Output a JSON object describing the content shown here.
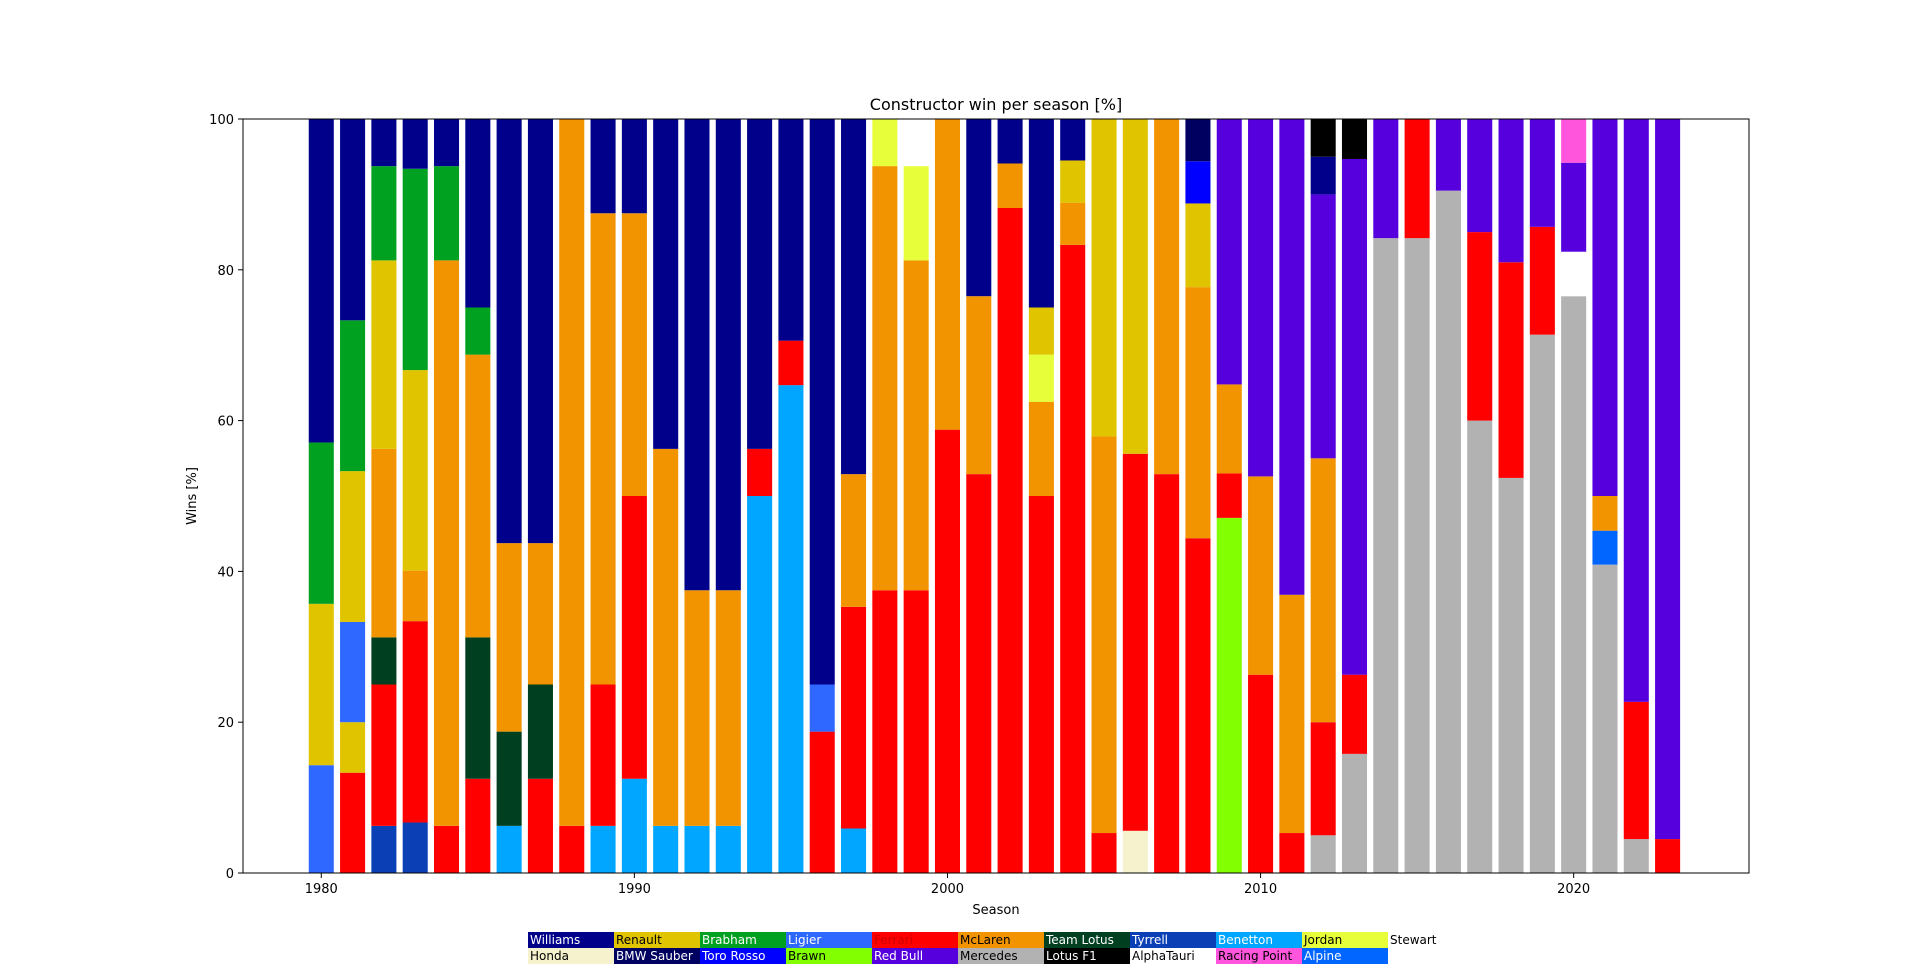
{
  "chart_data": {
    "type": "bar",
    "stacked": true,
    "title": "Constructor win per season [%]",
    "xlabel": "Season",
    "ylabel": "Wins [%]",
    "xlim": [
      1977.5,
      2025.6
    ],
    "ylim": [
      0,
      100
    ],
    "xticks": [
      1980,
      1990,
      2000,
      2010,
      2020
    ],
    "yticks": [
      0,
      20,
      40,
      60,
      80,
      100
    ],
    "grid": false,
    "legend_position": "bottom-center",
    "constructors": [
      {
        "name": "Williams",
        "color": "#00008b",
        "text_color": "#ffffff"
      },
      {
        "name": "Renault",
        "color": "#e0c400",
        "text_color": "#000000"
      },
      {
        "name": "Brabham",
        "color": "#00a020",
        "text_color": "#ffffff"
      },
      {
        "name": "Ligier",
        "color": "#2e68ff",
        "text_color": "#ffffff"
      },
      {
        "name": "Ferrari",
        "color": "#ff0000",
        "text_color": "#cc0000"
      },
      {
        "name": "McLaren",
        "color": "#f29400",
        "text_color": "#000000"
      },
      {
        "name": "Team Lotus",
        "color": "#004020",
        "text_color": "#ffffff"
      },
      {
        "name": "Tyrrell",
        "color": "#0b3fb6",
        "text_color": "#ffffff"
      },
      {
        "name": "Benetton",
        "color": "#00a6ff",
        "text_color": "#ffffff"
      },
      {
        "name": "Jordan",
        "color": "#e6ff3a",
        "text_color": "#000000"
      },
      {
        "name": "Stewart",
        "color": "#ffffff",
        "text_color": "#000000"
      },
      {
        "name": "Honda",
        "color": "#f5f2cd",
        "text_color": "#000000"
      },
      {
        "name": "BMW Sauber",
        "color": "#000060",
        "text_color": "#ffffff"
      },
      {
        "name": "Toro Rosso",
        "color": "#0000ff",
        "text_color": "#ffffff"
      },
      {
        "name": "Brawn",
        "color": "#82ff00",
        "text_color": "#000000"
      },
      {
        "name": "Red Bull",
        "color": "#5500dd",
        "text_color": "#ffffff"
      },
      {
        "name": "Mercedes",
        "color": "#b2b2b2",
        "text_color": "#000000"
      },
      {
        "name": "Lotus F1",
        "color": "#000000",
        "text_color": "#ffffff"
      },
      {
        "name": "AlphaTauri",
        "color": "#ffffff",
        "text_color": "#000000"
      },
      {
        "name": "Racing Point",
        "color": "#ff55dd",
        "text_color": "#000000"
      },
      {
        "name": "Alpine",
        "color": "#0066ff",
        "text_color": "#ffffff"
      }
    ],
    "seasons": [
      {
        "year": 1980,
        "segments": [
          [
            "Ligier",
            14.3
          ],
          [
            "Renault",
            21.4
          ],
          [
            "Brabham",
            21.4
          ],
          [
            "Williams",
            42.9
          ]
        ]
      },
      {
        "year": 1981,
        "segments": [
          [
            "Ferrari",
            13.3
          ],
          [
            "Renault",
            6.7
          ],
          [
            "Ligier",
            13.3
          ],
          [
            "Renault",
            20.0
          ],
          [
            "Brabham",
            20.0
          ],
          [
            "Williams",
            26.7
          ]
        ]
      },
      {
        "year": 1982,
        "segments": [
          [
            "Tyrrell",
            6.25
          ],
          [
            "Ferrari",
            18.75
          ],
          [
            "Team Lotus",
            6.25
          ],
          [
            "McLaren",
            25.0
          ],
          [
            "Renault",
            25.0
          ],
          [
            "Brabham",
            12.5
          ],
          [
            "Williams",
            6.25
          ]
        ]
      },
      {
        "year": 1983,
        "segments": [
          [
            "Tyrrell",
            6.7
          ],
          [
            "Ferrari",
            26.7
          ],
          [
            "McLaren",
            6.7
          ],
          [
            "Renault",
            26.6
          ],
          [
            "Brabham",
            26.7
          ],
          [
            "Williams",
            6.6
          ]
        ]
      },
      {
        "year": 1984,
        "segments": [
          [
            "Ferrari",
            6.25
          ],
          [
            "McLaren",
            75.0
          ],
          [
            "Brabham",
            12.5
          ],
          [
            "Williams",
            6.25
          ]
        ]
      },
      {
        "year": 1985,
        "segments": [
          [
            "Ferrari",
            12.5
          ],
          [
            "Team Lotus",
            18.75
          ],
          [
            "McLaren",
            37.5
          ],
          [
            "Brabham",
            6.25
          ],
          [
            "Williams",
            25.0
          ]
        ]
      },
      {
        "year": 1986,
        "segments": [
          [
            "Benetton",
            6.25
          ],
          [
            "Team Lotus",
            12.5
          ],
          [
            "McLaren",
            25.0
          ],
          [
            "Williams",
            56.25
          ]
        ]
      },
      {
        "year": 1987,
        "segments": [
          [
            "Ferrari",
            12.5
          ],
          [
            "Team Lotus",
            12.5
          ],
          [
            "McLaren",
            18.75
          ],
          [
            "Williams",
            56.25
          ]
        ]
      },
      {
        "year": 1988,
        "segments": [
          [
            "Ferrari",
            6.25
          ],
          [
            "McLaren",
            93.75
          ]
        ]
      },
      {
        "year": 1989,
        "segments": [
          [
            "Benetton",
            6.25
          ],
          [
            "Ferrari",
            18.75
          ],
          [
            "McLaren",
            62.5
          ],
          [
            "Williams",
            12.5
          ]
        ]
      },
      {
        "year": 1990,
        "segments": [
          [
            "Benetton",
            12.5
          ],
          [
            "Ferrari",
            37.5
          ],
          [
            "McLaren",
            37.5
          ],
          [
            "Williams",
            12.5
          ]
        ]
      },
      {
        "year": 1991,
        "segments": [
          [
            "Benetton",
            6.25
          ],
          [
            "McLaren",
            50.0
          ],
          [
            "Williams",
            43.75
          ]
        ]
      },
      {
        "year": 1992,
        "segments": [
          [
            "Benetton",
            6.25
          ],
          [
            "McLaren",
            31.25
          ],
          [
            "Williams",
            62.5
          ]
        ]
      },
      {
        "year": 1993,
        "segments": [
          [
            "Benetton",
            6.25
          ],
          [
            "McLaren",
            31.25
          ],
          [
            "Williams",
            62.5
          ]
        ]
      },
      {
        "year": 1994,
        "segments": [
          [
            "Benetton",
            50.0
          ],
          [
            "Ferrari",
            6.25
          ],
          [
            "Williams",
            43.75
          ]
        ]
      },
      {
        "year": 1995,
        "segments": [
          [
            "Benetton",
            64.7
          ],
          [
            "Ferrari",
            5.9
          ],
          [
            "Williams",
            29.4
          ]
        ]
      },
      {
        "year": 1996,
        "segments": [
          [
            "Ferrari",
            18.75
          ],
          [
            "Ligier",
            6.25
          ],
          [
            "Williams",
            75.0
          ]
        ]
      },
      {
        "year": 1997,
        "segments": [
          [
            "Benetton",
            5.9
          ],
          [
            "Ferrari",
            29.4
          ],
          [
            "McLaren",
            17.6
          ],
          [
            "Williams",
            47.1
          ]
        ]
      },
      {
        "year": 1998,
        "segments": [
          [
            "Ferrari",
            37.5
          ],
          [
            "McLaren",
            56.25
          ],
          [
            "Jordan",
            6.25
          ]
        ]
      },
      {
        "year": 1999,
        "segments": [
          [
            "Ferrari",
            37.5
          ],
          [
            "McLaren",
            43.75
          ],
          [
            "Jordan",
            12.5
          ],
          [
            "Stewart",
            6.25
          ]
        ]
      },
      {
        "year": 2000,
        "segments": [
          [
            "Ferrari",
            58.8
          ],
          [
            "McLaren",
            41.2
          ]
        ]
      },
      {
        "year": 2001,
        "segments": [
          [
            "Ferrari",
            52.9
          ],
          [
            "McLaren",
            23.6
          ],
          [
            "Williams",
            23.5
          ]
        ]
      },
      {
        "year": 2002,
        "segments": [
          [
            "Ferrari",
            88.2
          ],
          [
            "McLaren",
            5.9
          ],
          [
            "Williams",
            5.9
          ]
        ]
      },
      {
        "year": 2003,
        "segments": [
          [
            "Ferrari",
            50.0
          ],
          [
            "McLaren",
            12.5
          ],
          [
            "Jordan",
            6.25
          ],
          [
            "Renault",
            6.25
          ],
          [
            "Williams",
            25.0
          ]
        ]
      },
      {
        "year": 2004,
        "segments": [
          [
            "Ferrari",
            83.3
          ],
          [
            "McLaren",
            5.6
          ],
          [
            "Renault",
            5.6
          ],
          [
            "Williams",
            5.5
          ]
        ]
      },
      {
        "year": 2005,
        "segments": [
          [
            "Ferrari",
            5.3
          ],
          [
            "McLaren",
            52.6
          ],
          [
            "Renault",
            42.1
          ]
        ]
      },
      {
        "year": 2006,
        "segments": [
          [
            "Honda",
            5.6
          ],
          [
            "Ferrari",
            50.0
          ],
          [
            "Renault",
            44.4
          ]
        ]
      },
      {
        "year": 2007,
        "segments": [
          [
            "Ferrari",
            52.9
          ],
          [
            "McLaren",
            47.1
          ]
        ]
      },
      {
        "year": 2008,
        "segments": [
          [
            "Ferrari",
            44.4
          ],
          [
            "McLaren",
            33.3
          ],
          [
            "Renault",
            11.1
          ],
          [
            "Toro Rosso",
            5.6
          ],
          [
            "BMW Sauber",
            5.6
          ]
        ]
      },
      {
        "year": 2009,
        "segments": [
          [
            "Brawn",
            47.1
          ],
          [
            "Ferrari",
            5.9
          ],
          [
            "McLaren",
            11.8
          ],
          [
            "Red Bull",
            35.2
          ]
        ]
      },
      {
        "year": 2010,
        "segments": [
          [
            "Ferrari",
            26.3
          ],
          [
            "McLaren",
            26.3
          ],
          [
            "Red Bull",
            47.4
          ]
        ]
      },
      {
        "year": 2011,
        "segments": [
          [
            "Ferrari",
            5.3
          ],
          [
            "McLaren",
            31.6
          ],
          [
            "Red Bull",
            63.1
          ]
        ]
      },
      {
        "year": 2012,
        "segments": [
          [
            "Mercedes",
            5.0
          ],
          [
            "Ferrari",
            15.0
          ],
          [
            "McLaren",
            35.0
          ],
          [
            "Red Bull",
            35.0
          ],
          [
            "Williams",
            5.0
          ],
          [
            "Lotus F1",
            5.0
          ]
        ]
      },
      {
        "year": 2013,
        "segments": [
          [
            "Mercedes",
            15.8
          ],
          [
            "Ferrari",
            10.5
          ],
          [
            "Red Bull",
            68.4
          ],
          [
            "Lotus F1",
            5.3
          ]
        ]
      },
      {
        "year": 2014,
        "segments": [
          [
            "Mercedes",
            84.2
          ],
          [
            "Red Bull",
            15.8
          ]
        ]
      },
      {
        "year": 2015,
        "segments": [
          [
            "Mercedes",
            84.2
          ],
          [
            "Ferrari",
            15.8
          ]
        ]
      },
      {
        "year": 2016,
        "segments": [
          [
            "Mercedes",
            90.5
          ],
          [
            "Red Bull",
            9.5
          ]
        ]
      },
      {
        "year": 2017,
        "segments": [
          [
            "Mercedes",
            60.0
          ],
          [
            "Ferrari",
            25.0
          ],
          [
            "Red Bull",
            15.0
          ]
        ]
      },
      {
        "year": 2018,
        "segments": [
          [
            "Mercedes",
            52.4
          ],
          [
            "Ferrari",
            28.6
          ],
          [
            "Red Bull",
            19.0
          ]
        ]
      },
      {
        "year": 2019,
        "segments": [
          [
            "Mercedes",
            71.4
          ],
          [
            "Ferrari",
            14.3
          ],
          [
            "Red Bull",
            14.3
          ]
        ]
      },
      {
        "year": 2020,
        "segments": [
          [
            "Mercedes",
            76.5
          ],
          [
            "AlphaTauri",
            5.9
          ],
          [
            "Red Bull",
            11.8
          ],
          [
            "Racing Point",
            5.8
          ]
        ]
      },
      {
        "year": 2021,
        "segments": [
          [
            "Mercedes",
            40.9
          ],
          [
            "Alpine",
            4.5
          ],
          [
            "McLaren",
            4.6
          ],
          [
            "Red Bull",
            50.0
          ]
        ]
      },
      {
        "year": 2022,
        "segments": [
          [
            "Mercedes",
            4.5
          ],
          [
            "Ferrari",
            18.2
          ],
          [
            "Red Bull",
            77.3
          ]
        ]
      },
      {
        "year": 2023,
        "segments": [
          [
            "Ferrari",
            4.5
          ],
          [
            "Red Bull",
            95.5
          ]
        ]
      }
    ]
  }
}
